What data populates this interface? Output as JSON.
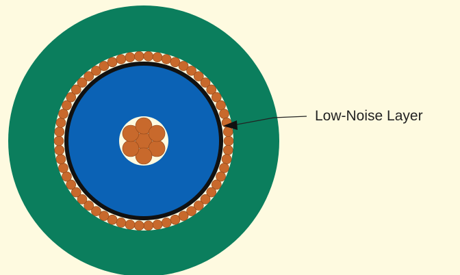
{
  "diagram": {
    "callout": {
      "label": "Low-Noise Layer"
    }
  },
  "colors": {
    "background": "#fefae0",
    "outer_jacket": "#0b7e5d",
    "shield_gap": "#fefae0",
    "shield_strand": "#c8692c",
    "shield_strand_outline": "#8a4418",
    "low_noise_layer": "#111111",
    "dielectric": "#0b62b5",
    "core_gap": "#fefae0",
    "core_strand": "#c8692c",
    "core_strand_outline": "#8a4418",
    "callout_line": "#222222",
    "label_text": "#222222"
  }
}
